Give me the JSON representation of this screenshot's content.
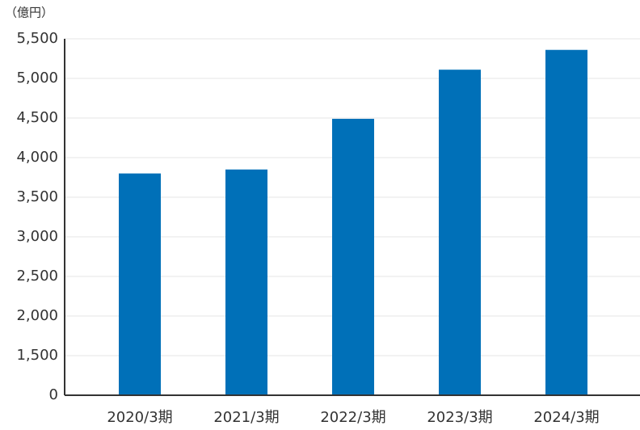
{
  "chart_data": {
    "type": "bar",
    "unit_label": "（億円）",
    "categories": [
      "2020/3期",
      "2021/3期",
      "2022/3期",
      "2023/3期",
      "2024/3期"
    ],
    "values": [
      3800,
      3850,
      4490,
      5110,
      5360
    ],
    "color": "#0070b8",
    "ylim": [
      0,
      5500
    ],
    "y_break": [
      0,
      1000
    ],
    "yticks": [
      0,
      {
        "value": 1500,
        "label": "1,500"
      },
      {
        "value": 2000,
        "label": "2,000"
      },
      {
        "value": 2500,
        "label": "2,500"
      },
      {
        "value": 3000,
        "label": "3,000"
      },
      {
        "value": 3500,
        "label": "3,500"
      },
      {
        "value": 4000,
        "label": "4,000"
      },
      {
        "value": 4500,
        "label": "4,500"
      },
      {
        "value": 5000,
        "label": "5,000"
      },
      {
        "value": 5500,
        "label": "5,500"
      }
    ],
    "grid": true
  }
}
